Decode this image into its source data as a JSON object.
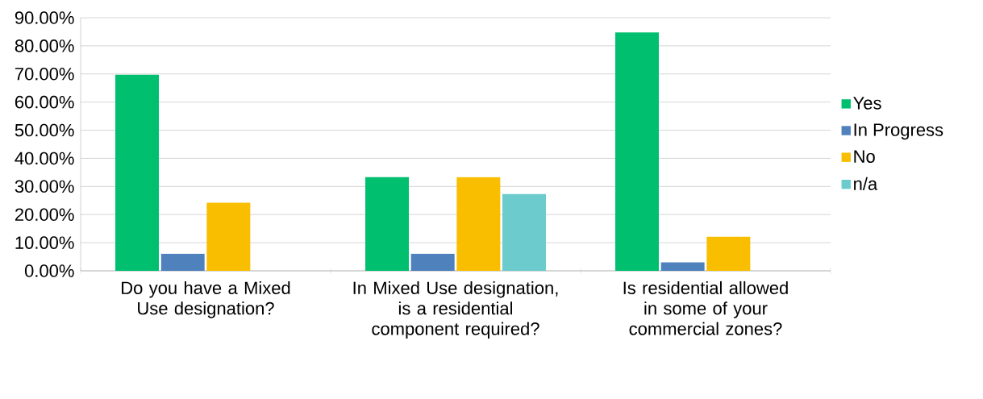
{
  "chart_data": {
    "type": "bar",
    "categories": [
      "Do you have a Mixed Use designation?",
      "In Mixed Use designation, is a residential component required?",
      "Is residential allowed in some of your commercial zones?"
    ],
    "series": [
      {
        "name": "Yes",
        "color": "#00bf6f",
        "values": [
          69.7,
          33.3,
          84.8
        ]
      },
      {
        "name": "In Progress",
        "color": "#4f81bd",
        "values": [
          6.1,
          6.1,
          3.0
        ]
      },
      {
        "name": "No",
        "color": "#f9be00",
        "values": [
          24.2,
          33.3,
          12.1
        ]
      },
      {
        "name": "n/a",
        "color": "#6ccbcc",
        "values": [
          null,
          27.3,
          null
        ]
      }
    ],
    "ylim": [
      0,
      90
    ],
    "yticks": [
      {
        "value": 0,
        "label": "0.00%"
      },
      {
        "value": 10,
        "label": "10.00%"
      },
      {
        "value": 20,
        "label": "20.00%"
      },
      {
        "value": 30,
        "label": "30.00%"
      },
      {
        "value": 40,
        "label": "40.00%"
      },
      {
        "value": 50,
        "label": "50.00%"
      },
      {
        "value": 60,
        "label": "60.00%"
      },
      {
        "value": 70,
        "label": "70.00%"
      },
      {
        "value": 80,
        "label": "80.00%"
      },
      {
        "value": 90,
        "label": "90.00%"
      }
    ],
    "grid": "y",
    "legend": "right"
  }
}
